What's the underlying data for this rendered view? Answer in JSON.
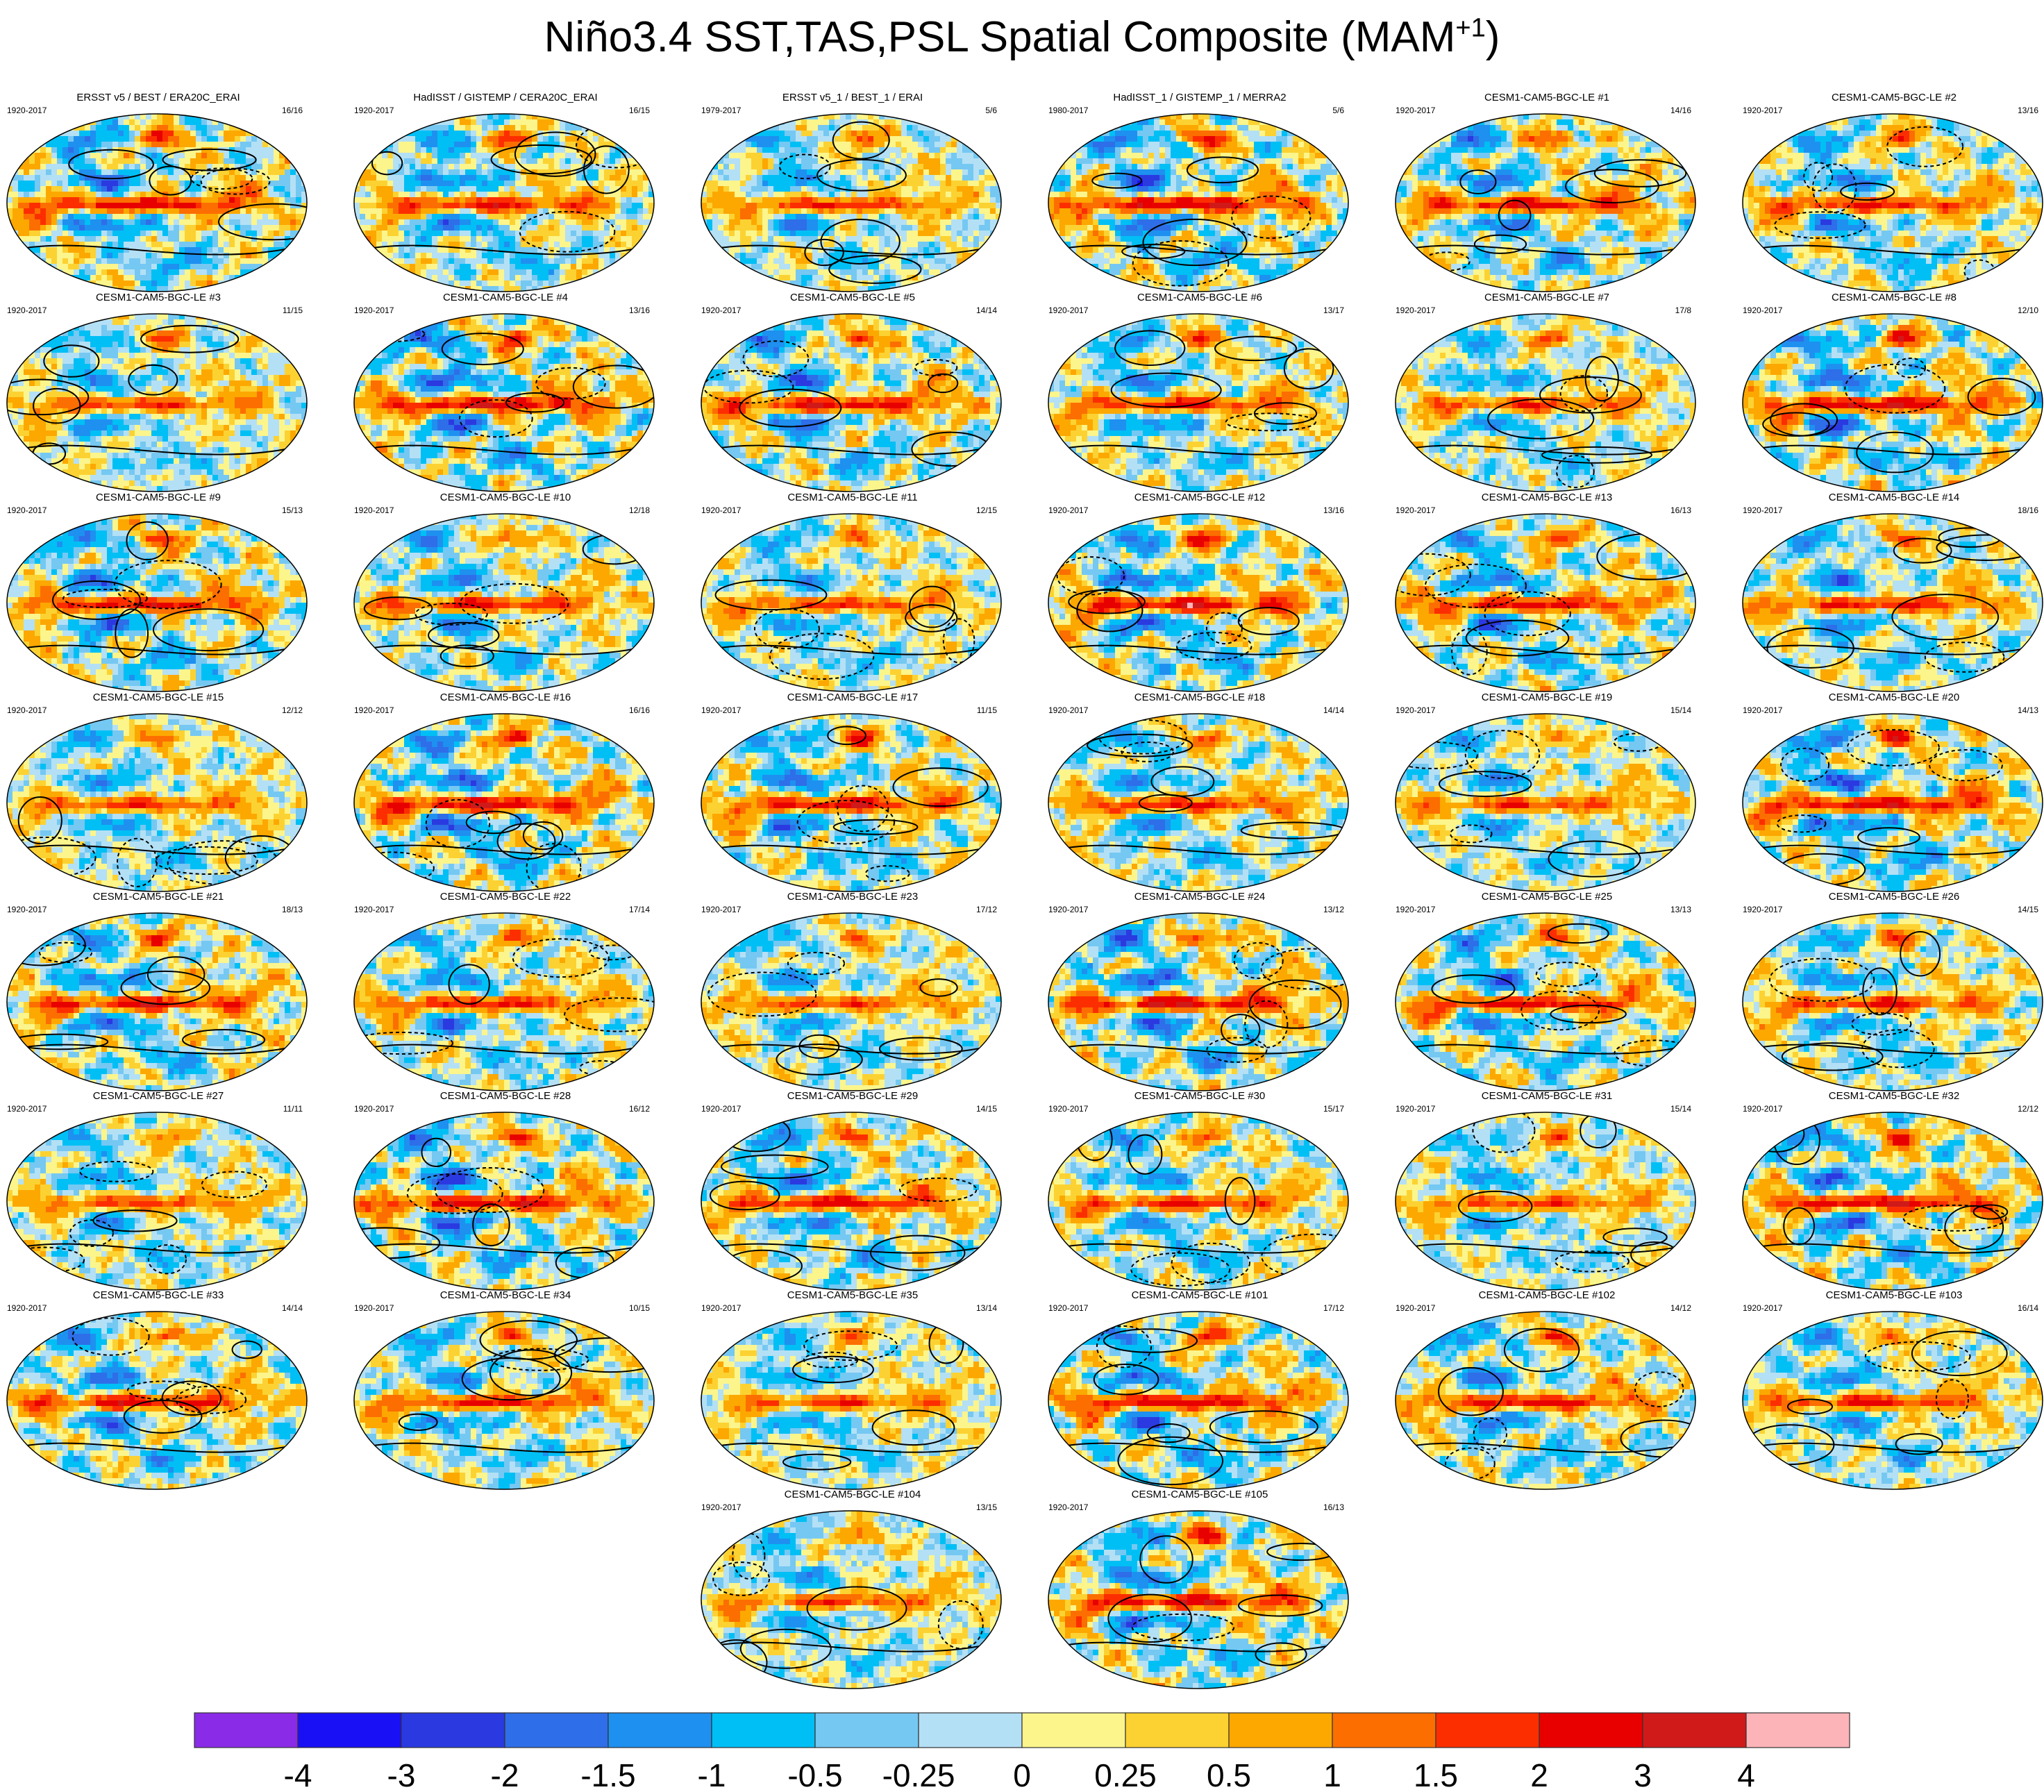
{
  "title": {
    "main": "Niño3.4 SST,TAS,PSL Spatial Composite (MAM",
    "superscript": "+1",
    "close": ")"
  },
  "chart_data": {
    "type": "map-panels",
    "title": "Niño3.4 SST,TAS,PSL Spatial Composite (MAM+1)",
    "panels": [
      {
        "title": "ERSST v5 / BEST / ERA20C_ERAI",
        "years": "1920-2017",
        "count": "16/16"
      },
      {
        "title": "HadISST / GISTEMP / CERA20C_ERAI",
        "years": "1920-2017",
        "count": "16/15"
      },
      {
        "title": "ERSST v5_1 / BEST_1 / ERAI",
        "years": "1979-2017",
        "count": "5/6"
      },
      {
        "title": "HadISST_1 / GISTEMP_1 / MERRA2",
        "years": "1980-2017",
        "count": "5/6"
      },
      {
        "title": "CESM1-CAM5-BGC-LE #1",
        "years": "1920-2017",
        "count": "14/16"
      },
      {
        "title": "CESM1-CAM5-BGC-LE #2",
        "years": "1920-2017",
        "count": "13/16"
      },
      {
        "title": "CESM1-CAM5-BGC-LE #3",
        "years": "1920-2017",
        "count": "11/15"
      },
      {
        "title": "CESM1-CAM5-BGC-LE #4",
        "years": "1920-2017",
        "count": "13/16"
      },
      {
        "title": "CESM1-CAM5-BGC-LE #5",
        "years": "1920-2017",
        "count": "14/14"
      },
      {
        "title": "CESM1-CAM5-BGC-LE #6",
        "years": "1920-2017",
        "count": "13/17"
      },
      {
        "title": "CESM1-CAM5-BGC-LE #7",
        "years": "1920-2017",
        "count": "17/8"
      },
      {
        "title": "CESM1-CAM5-BGC-LE #8",
        "years": "1920-2017",
        "count": "12/10"
      },
      {
        "title": "CESM1-CAM5-BGC-LE #9",
        "years": "1920-2017",
        "count": "15/13"
      },
      {
        "title": "CESM1-CAM5-BGC-LE #10",
        "years": "1920-2017",
        "count": "12/18"
      },
      {
        "title": "CESM1-CAM5-BGC-LE #11",
        "years": "1920-2017",
        "count": "12/15"
      },
      {
        "title": "CESM1-CAM5-BGC-LE #12",
        "years": "1920-2017",
        "count": "13/16"
      },
      {
        "title": "CESM1-CAM5-BGC-LE #13",
        "years": "1920-2017",
        "count": "16/13"
      },
      {
        "title": "CESM1-CAM5-BGC-LE #14",
        "years": "1920-2017",
        "count": "18/16"
      },
      {
        "title": "CESM1-CAM5-BGC-LE #15",
        "years": "1920-2017",
        "count": "12/12"
      },
      {
        "title": "CESM1-CAM5-BGC-LE #16",
        "years": "1920-2017",
        "count": "16/16"
      },
      {
        "title": "CESM1-CAM5-BGC-LE #17",
        "years": "1920-2017",
        "count": "11/15"
      },
      {
        "title": "CESM1-CAM5-BGC-LE #18",
        "years": "1920-2017",
        "count": "14/14"
      },
      {
        "title": "CESM1-CAM5-BGC-LE #19",
        "years": "1920-2017",
        "count": "15/14"
      },
      {
        "title": "CESM1-CAM5-BGC-LE #20",
        "years": "1920-2017",
        "count": "14/13"
      },
      {
        "title": "CESM1-CAM5-BGC-LE #21",
        "years": "1920-2017",
        "count": "18/13"
      },
      {
        "title": "CESM1-CAM5-BGC-LE #22",
        "years": "1920-2017",
        "count": "17/14"
      },
      {
        "title": "CESM1-CAM5-BGC-LE #23",
        "years": "1920-2017",
        "count": "17/12"
      },
      {
        "title": "CESM1-CAM5-BGC-LE #24",
        "years": "1920-2017",
        "count": "13/12"
      },
      {
        "title": "CESM1-CAM5-BGC-LE #25",
        "years": "1920-2017",
        "count": "13/13"
      },
      {
        "title": "CESM1-CAM5-BGC-LE #26",
        "years": "1920-2017",
        "count": "14/15"
      },
      {
        "title": "CESM1-CAM5-BGC-LE #27",
        "years": "1920-2017",
        "count": "11/11"
      },
      {
        "title": "CESM1-CAM5-BGC-LE #28",
        "years": "1920-2017",
        "count": "16/12"
      },
      {
        "title": "CESM1-CAM5-BGC-LE #29",
        "years": "1920-2017",
        "count": "14/15"
      },
      {
        "title": "CESM1-CAM5-BGC-LE #30",
        "years": "1920-2017",
        "count": "15/17"
      },
      {
        "title": "CESM1-CAM5-BGC-LE #31",
        "years": "1920-2017",
        "count": "15/14"
      },
      {
        "title": "CESM1-CAM5-BGC-LE #32",
        "years": "1920-2017",
        "count": "12/12"
      },
      {
        "title": "CESM1-CAM5-BGC-LE #33",
        "years": "1920-2017",
        "count": "14/14"
      },
      {
        "title": "CESM1-CAM5-BGC-LE #34",
        "years": "1920-2017",
        "count": "10/15"
      },
      {
        "title": "CESM1-CAM5-BGC-LE #35",
        "years": "1920-2017",
        "count": "13/14"
      },
      {
        "title": "CESM1-CAM5-BGC-LE #101",
        "years": "1920-2017",
        "count": "17/12"
      },
      {
        "title": "CESM1-CAM5-BGC-LE #102",
        "years": "1920-2017",
        "count": "14/12"
      },
      {
        "title": "CESM1-CAM5-BGC-LE #103",
        "years": "1920-2017",
        "count": "16/14"
      },
      {
        "title": "CESM1-CAM5-BGC-LE #104",
        "years": "1920-2017",
        "count": "13/15"
      },
      {
        "title": "CESM1-CAM5-BGC-LE #105",
        "years": "1920-2017",
        "count": "16/13"
      }
    ],
    "colorbar": {
      "labels": [
        "-4",
        "-3",
        "-2",
        "-1.5",
        "-1",
        "-0.5",
        "-0.25",
        "0",
        "0.25",
        "0.5",
        "1",
        "1.5",
        "2",
        "3",
        "4"
      ],
      "colors": [
        "#8a2be8",
        "#1a10f5",
        "#2a3ae0",
        "#2e6ee8",
        "#1e90f0",
        "#00bff5",
        "#75c8f2",
        "#b4e0f5",
        "#fbf58c",
        "#fcd232",
        "#fca800",
        "#fc6e00",
        "#fc2e00",
        "#e80000",
        "#d01a1a",
        "#fcb4b8"
      ]
    }
  }
}
